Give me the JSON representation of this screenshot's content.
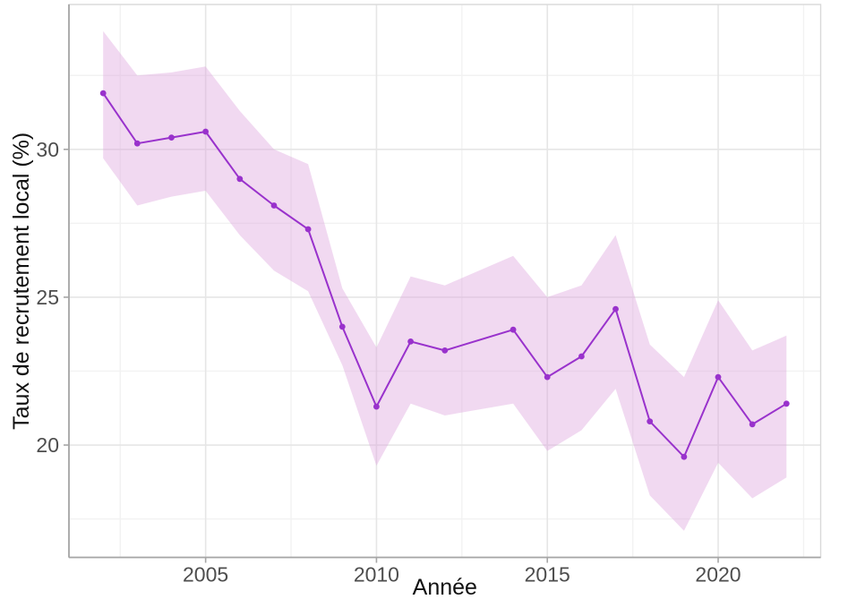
{
  "chart_data": {
    "type": "line",
    "title": "",
    "xlabel": "Année",
    "ylabel": "Taux de recrutement local (%)",
    "x_tick_labels": [
      "2005",
      "2010",
      "2015",
      "2020"
    ],
    "x_ticks": [
      2005,
      2010,
      2015,
      2020
    ],
    "y_tick_labels": [
      "20",
      "25",
      "30"
    ],
    "y_ticks": [
      20,
      25,
      30
    ],
    "xlim": [
      2001,
      2023
    ],
    "ylim": [
      16.2,
      34.9
    ],
    "grid": "major+minor",
    "legend": "none",
    "series": [
      {
        "name": "taux-de-recrutement-local",
        "x": [
          2002,
          2003,
          2004,
          2005,
          2006,
          2007,
          2008,
          2009,
          2010,
          2011,
          2012,
          2014,
          2015,
          2016,
          2017,
          2018,
          2019,
          2020,
          2021,
          2022
        ],
        "y": [
          31.9,
          30.2,
          30.4,
          30.6,
          29.0,
          28.1,
          27.3,
          24.0,
          21.3,
          23.5,
          23.2,
          23.9,
          22.3,
          23.0,
          24.6,
          20.8,
          19.6,
          22.3,
          20.7,
          21.4
        ],
        "ci_lower": [
          29.7,
          28.1,
          28.4,
          28.6,
          27.1,
          25.9,
          25.2,
          22.7,
          19.3,
          21.4,
          21.0,
          21.4,
          19.8,
          20.5,
          21.9,
          18.3,
          17.1,
          19.4,
          18.2,
          18.9
        ],
        "ci_upper": [
          34.0,
          32.5,
          32.6,
          32.8,
          31.3,
          30.0,
          29.5,
          25.3,
          23.3,
          25.7,
          25.4,
          26.4,
          25.0,
          25.4,
          27.1,
          23.4,
          22.3,
          24.9,
          23.2,
          23.7
        ]
      }
    ],
    "colors": {
      "line": "#9932cc",
      "point": "#9932cc",
      "ribbon": "#dda0dd",
      "ribbon_alpha": 0.4,
      "grid_major": "#e6e6e6",
      "grid_minor": "#f2f2f2",
      "panel_border": "#d9d9d9",
      "axis_line": "#a6a6a6",
      "tick_mark": "#a6a6a6",
      "tick_text": "#4d4d4d",
      "title_text": "#111111",
      "background": "#ffffff"
    }
  }
}
